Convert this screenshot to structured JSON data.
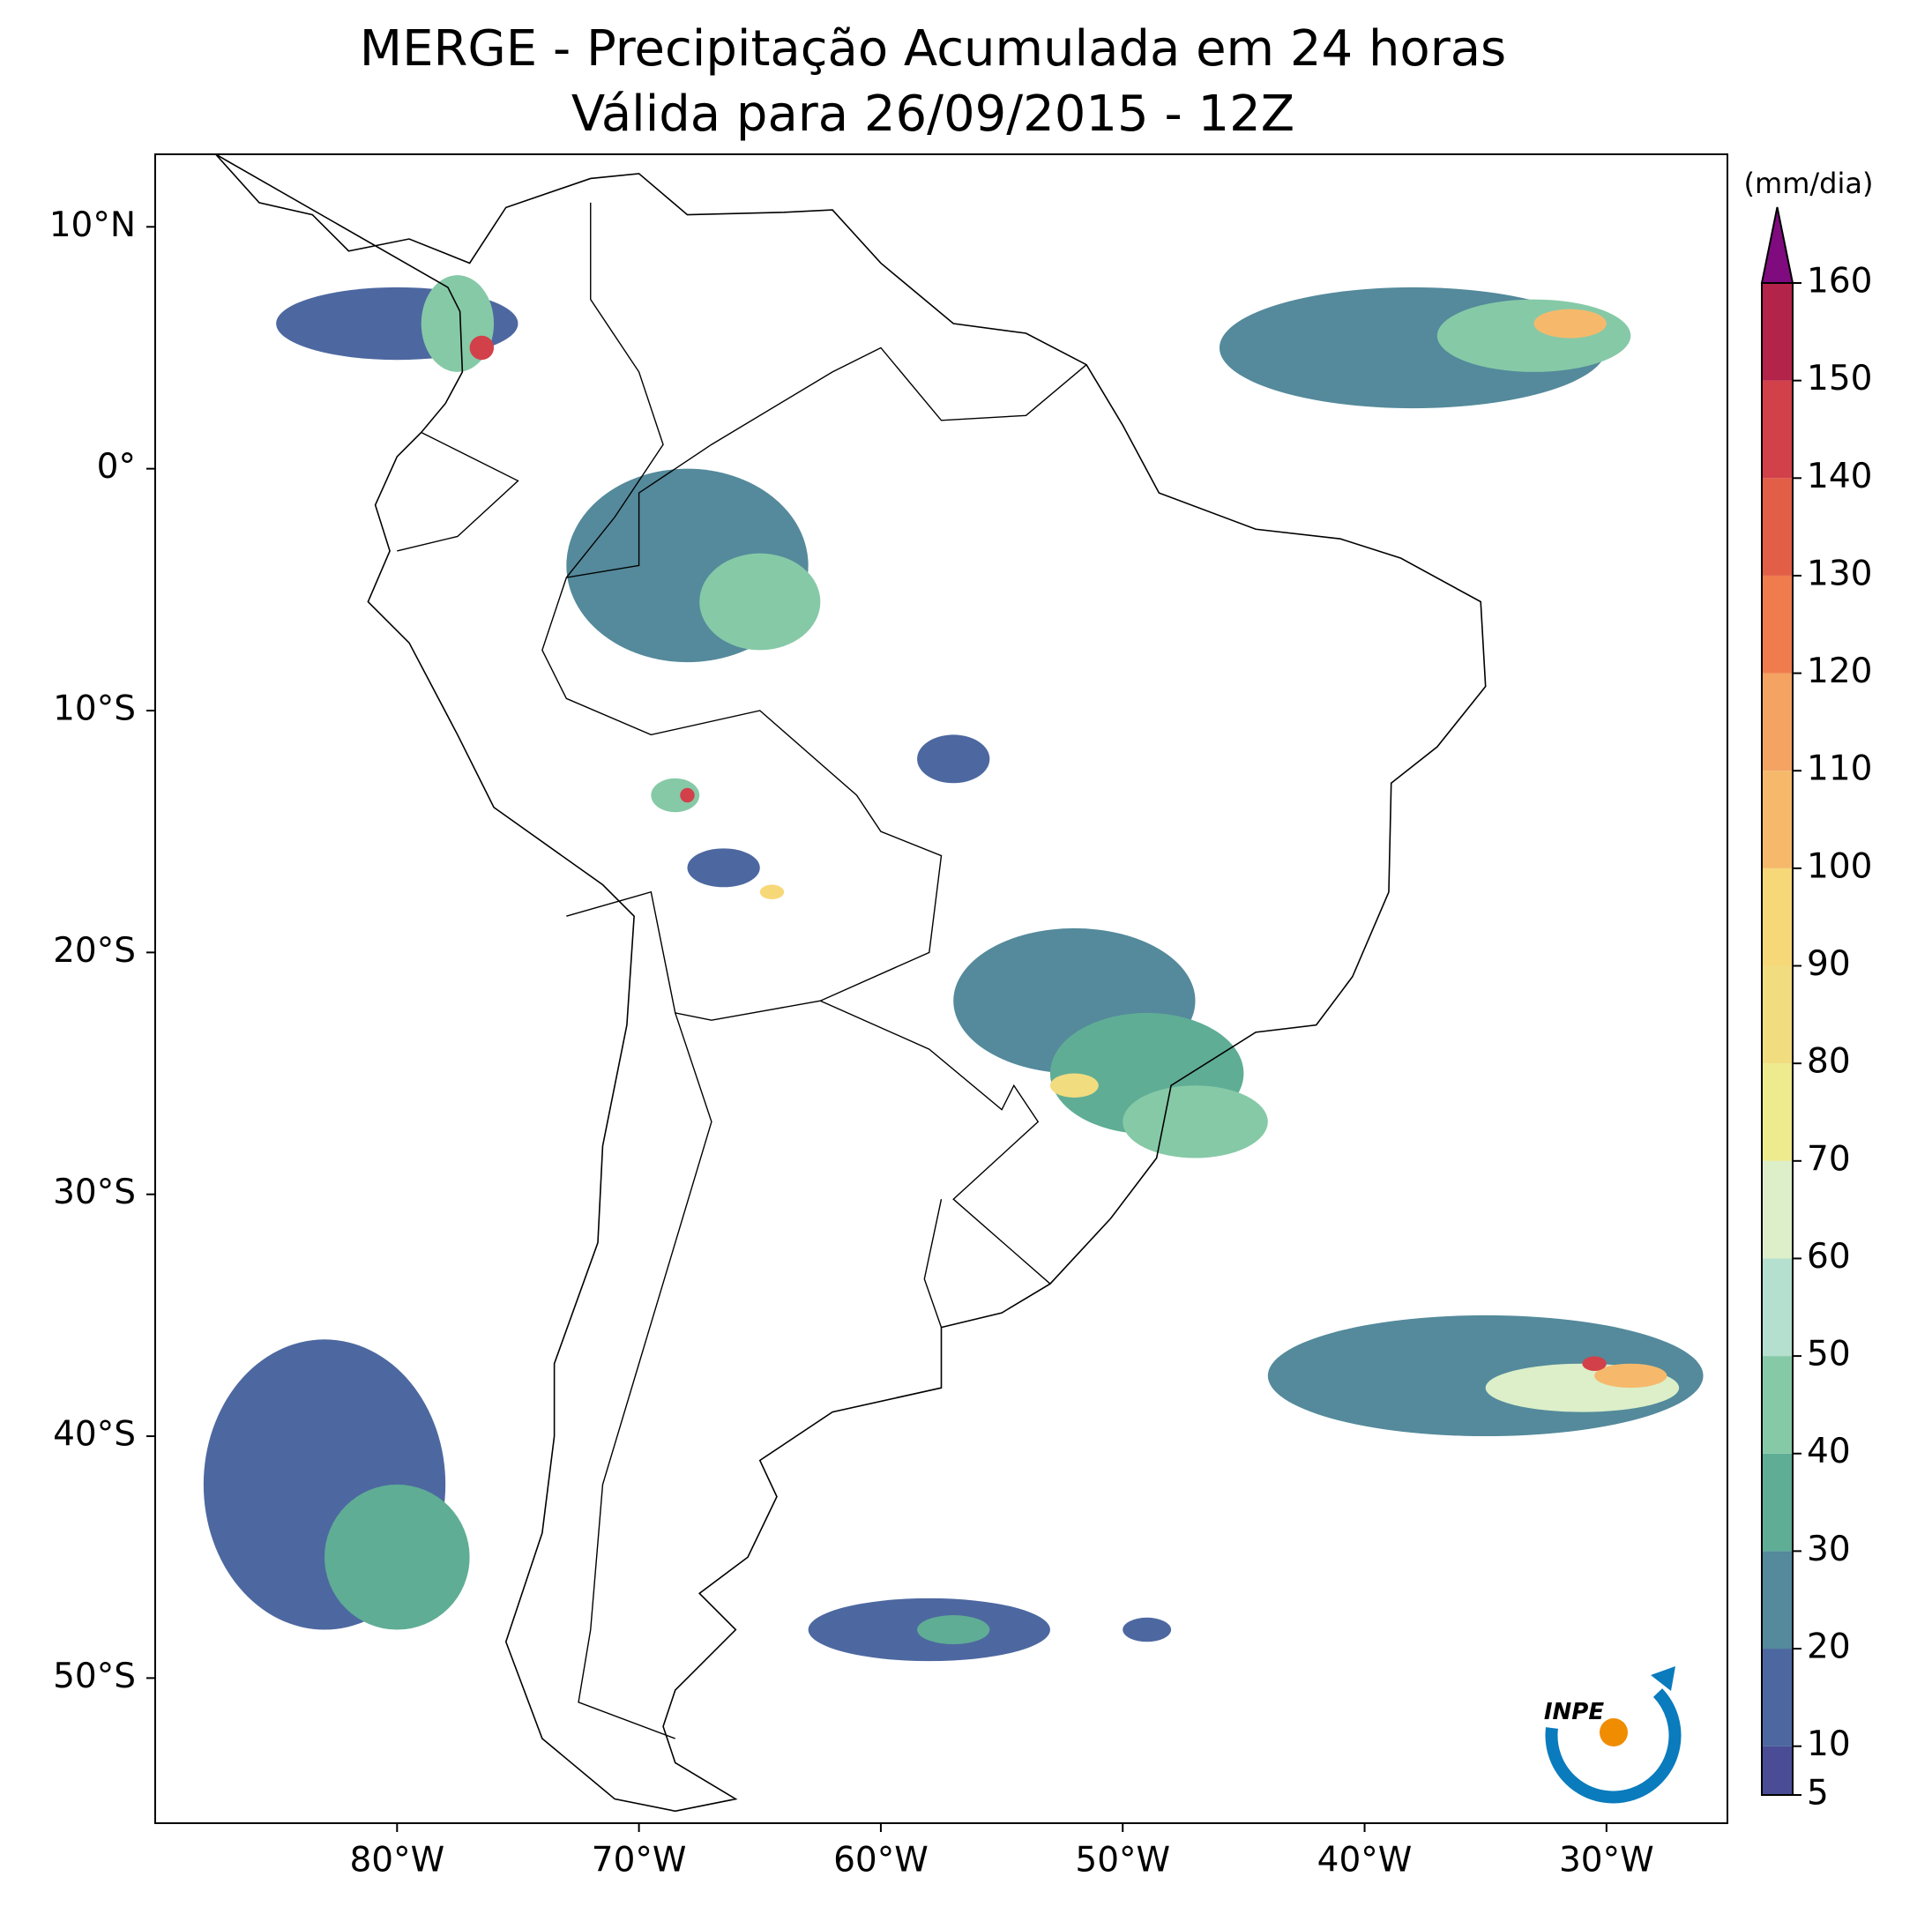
{
  "chart_data": {
    "type": "precip-map",
    "title": "MERGE - Precipitação Acumulada em 24 horas",
    "subtitle": "Válida para 26/09/2015 - 12Z",
    "xlim": [
      -90,
      -25
    ],
    "ylim": [
      -56,
      13
    ],
    "xticks": [
      {
        "value": -80,
        "label": "80°W"
      },
      {
        "value": -70,
        "label": "70°W"
      },
      {
        "value": -60,
        "label": "60°W"
      },
      {
        "value": -50,
        "label": "50°W"
      },
      {
        "value": -40,
        "label": "40°W"
      },
      {
        "value": -30,
        "label": "30°W"
      }
    ],
    "yticks": [
      {
        "value": 10,
        "label": "10°N"
      },
      {
        "value": 0,
        "label": "0°"
      },
      {
        "value": -10,
        "label": "10°S"
      },
      {
        "value": -20,
        "label": "20°S"
      },
      {
        "value": -30,
        "label": "30°S"
      },
      {
        "value": -40,
        "label": "40°S"
      },
      {
        "value": -50,
        "label": "50°S"
      }
    ],
    "colorbar": {
      "label": "(mm/dia)",
      "ticks": [
        5,
        10,
        20,
        30,
        40,
        50,
        60,
        70,
        80,
        90,
        100,
        110,
        120,
        130,
        140,
        150,
        160
      ],
      "colors": [
        "#4a4d96",
        "#4d68a0",
        "#548a9b",
        "#5fad95",
        "#86c9a7",
        "#b5dfcf",
        "#dcefc9",
        "#eeea8e",
        "#f1dc80",
        "#f7d879",
        "#f6b96b",
        "#f4a362",
        "#f07c4e",
        "#e25e47",
        "#d2404a",
        "#b3234a"
      ],
      "extend_color": "#7f0b7f"
    },
    "areas": [
      {
        "lon": -38,
        "lat": 5,
        "rx": 8,
        "ry": 2.5,
        "value": 20
      },
      {
        "lon": -33,
        "lat": 5.5,
        "rx": 4,
        "ry": 1.5,
        "value": 45
      },
      {
        "lon": -31.5,
        "lat": 6,
        "rx": 1.5,
        "ry": 0.6,
        "value": 100
      },
      {
        "lon": -80,
        "lat": 6,
        "rx": 5,
        "ry": 1.5,
        "value": 15
      },
      {
        "lon": -77.5,
        "lat": 6,
        "rx": 1.5,
        "ry": 2,
        "value": 40
      },
      {
        "lon": -76.5,
        "lat": 5,
        "rx": 0.5,
        "ry": 0.5,
        "value": 140
      },
      {
        "lon": -68,
        "lat": -4,
        "rx": 5,
        "ry": 4,
        "value": 20
      },
      {
        "lon": -65,
        "lat": -5.5,
        "rx": 2.5,
        "ry": 2,
        "value": 40
      },
      {
        "lon": -68.5,
        "lat": -13.5,
        "rx": 1,
        "ry": 0.7,
        "value": 40
      },
      {
        "lon": -68,
        "lat": -13.5,
        "rx": 0.3,
        "ry": 0.3,
        "value": 140
      },
      {
        "lon": -66.5,
        "lat": -16.5,
        "rx": 1.5,
        "ry": 0.8,
        "value": 15
      },
      {
        "lon": -64.5,
        "lat": -17.5,
        "rx": 0.5,
        "ry": 0.3,
        "value": 90
      },
      {
        "lon": -57,
        "lat": -12,
        "rx": 1.5,
        "ry": 1,
        "value": 15
      },
      {
        "lon": -52,
        "lat": -22,
        "rx": 5,
        "ry": 3,
        "value": 20
      },
      {
        "lon": -49,
        "lat": -25,
        "rx": 4,
        "ry": 2.5,
        "value": 35
      },
      {
        "lon": -47,
        "lat": -27,
        "rx": 3,
        "ry": 1.5,
        "value": 45
      },
      {
        "lon": -52,
        "lat": -25.5,
        "rx": 1,
        "ry": 0.5,
        "value": 80
      },
      {
        "lon": -35,
        "lat": -37.5,
        "rx": 9,
        "ry": 2.5,
        "value": 25
      },
      {
        "lon": -31,
        "lat": -38,
        "rx": 4,
        "ry": 1,
        "value": 60
      },
      {
        "lon": -29,
        "lat": -37.5,
        "rx": 1.5,
        "ry": 0.5,
        "value": 100
      },
      {
        "lon": -30.5,
        "lat": -37,
        "rx": 0.5,
        "ry": 0.3,
        "value": 140
      },
      {
        "lon": -83,
        "lat": -42,
        "rx": 5,
        "ry": 6,
        "value": 15
      },
      {
        "lon": -80,
        "lat": -45,
        "rx": 3,
        "ry": 3,
        "value": 30
      },
      {
        "lon": -58,
        "lat": -48,
        "rx": 5,
        "ry": 1.3,
        "value": 15
      },
      {
        "lon": -57,
        "lat": -48,
        "rx": 1.5,
        "ry": 0.6,
        "value": 35
      },
      {
        "lon": -49,
        "lat": -48,
        "rx": 1,
        "ry": 0.5,
        "value": 10
      }
    ],
    "logo_text": "INPE"
  }
}
